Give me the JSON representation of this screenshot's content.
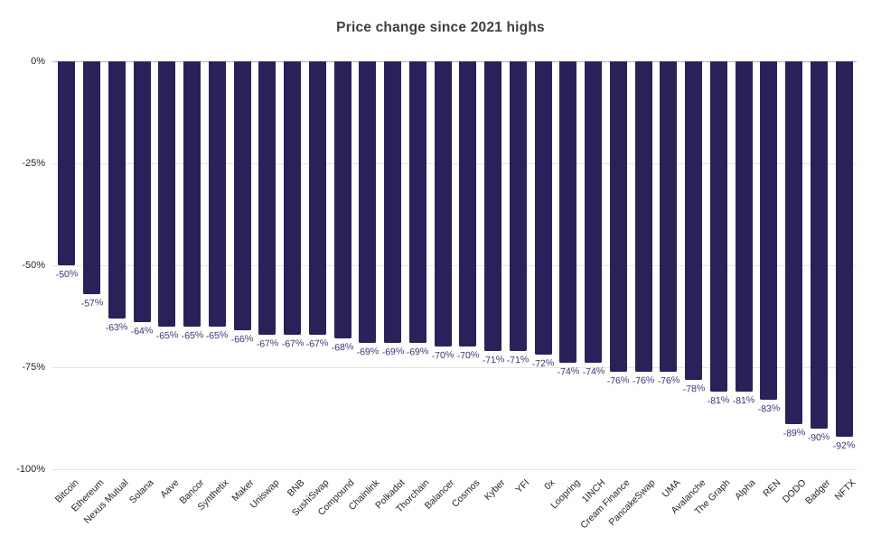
{
  "chart_data": {
    "type": "bar",
    "title": "Price change since 2021 highs",
    "categories": [
      "Bitcoin",
      "Ethereum",
      "Nexus Mutual",
      "Solana",
      "Aave",
      "Bancor",
      "Synthetix",
      "Maker",
      "Uniswap",
      "BNB",
      "SushiSwap",
      "Compound",
      "Chainlink",
      "Polkadot",
      "Thorchain",
      "Balancer",
      "Cosmos",
      "Kyber",
      "YFI",
      "0x",
      "Loopring",
      "1INCH",
      "Cream Finance",
      "PancakeSwap",
      "UMA",
      "Avalanche",
      "The Graph",
      "Alpha",
      "REN",
      "DODO",
      "Badger",
      "NFTX"
    ],
    "values": [
      -50,
      -57,
      -63,
      -64,
      -65,
      -65,
      -65,
      -66,
      -67,
      -67,
      -67,
      -68,
      -69,
      -69,
      -69,
      -70,
      -70,
      -71,
      -71,
      -72,
      -74,
      -74,
      -76,
      -76,
      -76,
      -78,
      -81,
      -81,
      -83,
      -89,
      -90,
      -92
    ],
    "value_label_suffix": "%",
    "xlabel": "",
    "ylabel": "",
    "ylim": [
      -100,
      0
    ],
    "yticks": [
      {
        "value": 0,
        "label": "0%"
      },
      {
        "value": -25,
        "label": "-25%"
      },
      {
        "value": -50,
        "label": "-50%"
      },
      {
        "value": -75,
        "label": "-75%"
      },
      {
        "value": -100,
        "label": "-100%"
      }
    ],
    "grid": true,
    "legend": false,
    "colors": {
      "bar": "#2b215a",
      "value_label": "#3c327b",
      "axis_text": "#262626",
      "title": "#3f3f3f",
      "gridline": "#e4e4e4",
      "zero_line": "#b3b3b3",
      "background": "#ffffff"
    }
  }
}
